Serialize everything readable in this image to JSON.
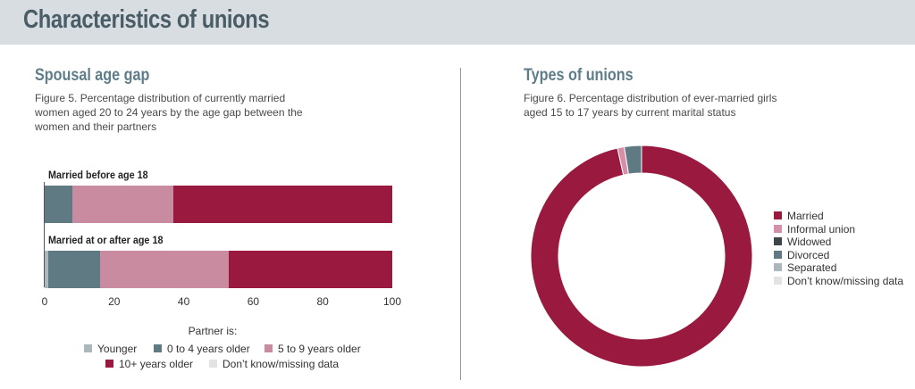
{
  "header": {
    "title": "Characteristics of unions"
  },
  "left": {
    "section_title": "Spousal age gap",
    "caption_lines": [
      "Figure 5. Percentage distribution of currently married",
      "women aged 20 to 24 years by the age gap between the",
      "women and their partners"
    ]
  },
  "right": {
    "section_title": "Types of unions",
    "caption_lines": [
      "Figure 6. Percentage distribution of ever-married girls",
      "aged 15 to 17 years by current marital status"
    ]
  },
  "chart_data": [
    {
      "type": "bar",
      "orientation": "horizontal",
      "stacked": true,
      "categories": [
        "Married before age 18",
        "Married at or after age 18"
      ],
      "series": [
        {
          "name": "Younger",
          "color": "#aab7bd",
          "values": [
            0,
            1
          ]
        },
        {
          "name": "0 to 4 years older",
          "color": "#5f7a83",
          "values": [
            8,
            15
          ]
        },
        {
          "name": "5 to 9 years older",
          "color": "#c98b9f",
          "values": [
            29,
            37
          ]
        },
        {
          "name": "10+ years older",
          "color": "#99193f",
          "values": [
            63,
            47
          ]
        },
        {
          "name": "Don’t know/missing data",
          "color": "#e3e3e3",
          "values": [
            0,
            0
          ]
        }
      ],
      "xlim": [
        0,
        100
      ],
      "xticks": [
        "0",
        "20",
        "40",
        "60",
        "80",
        "100"
      ],
      "legend_title": "Partner is:",
      "legend_placement": "bottom",
      "grid": false
    },
    {
      "type": "pie",
      "donut": true,
      "slices": [
        {
          "name": "Married",
          "color": "#99193f",
          "value": 96.5
        },
        {
          "name": "Informal union",
          "color": "#d68fa8",
          "value": 1.0
        },
        {
          "name": "Widowed",
          "color": "#3c4649",
          "value": 0
        },
        {
          "name": "Divorced",
          "color": "#5f7a83",
          "value": 2.5
        },
        {
          "name": "Separated",
          "color": "#aab7bd",
          "value": 0
        },
        {
          "name": "Don’t know/missing data",
          "color": "#e3e3e3",
          "value": 0
        }
      ],
      "legend_placement": "right"
    }
  ]
}
